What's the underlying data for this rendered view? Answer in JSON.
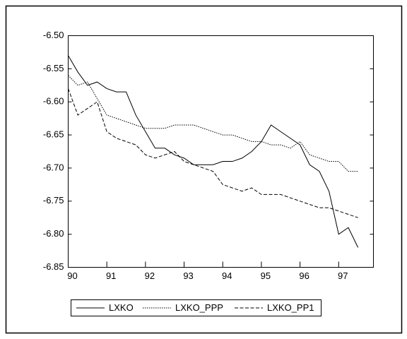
{
  "chart_data": {
    "type": "line",
    "x": [
      90,
      90.25,
      90.5,
      90.75,
      91,
      91.25,
      91.5,
      91.75,
      92,
      92.25,
      92.5,
      92.75,
      93,
      93.25,
      93.5,
      93.75,
      94,
      94.25,
      94.5,
      94.75,
      95,
      95.25,
      95.5,
      95.75,
      96,
      96.25,
      96.5,
      96.75,
      97,
      97.25,
      97.5
    ],
    "series": [
      {
        "name": "LXKO",
        "color": "#000000",
        "style": "solid",
        "values": [
          -6.53,
          -6.555,
          -6.575,
          -6.57,
          -6.58,
          -6.585,
          -6.585,
          -6.62,
          -6.645,
          -6.67,
          -6.67,
          -6.68,
          -6.685,
          -6.695,
          -6.695,
          -6.695,
          -6.69,
          -6.69,
          -6.685,
          -6.675,
          -6.66,
          -6.635,
          -6.645,
          -6.655,
          -6.665,
          -6.695,
          -6.705,
          -6.735,
          -6.8,
          -6.79,
          -6.82
        ]
      },
      {
        "name": "LXKO_PPP",
        "color": "#000000",
        "style": "dotted",
        "values": [
          -6.56,
          -6.575,
          -6.57,
          -6.595,
          -6.62,
          -6.625,
          -6.63,
          -6.635,
          -6.64,
          -6.64,
          -6.64,
          -6.635,
          -6.635,
          -6.635,
          -6.64,
          -6.645,
          -6.65,
          -6.65,
          -6.655,
          -6.66,
          -6.66,
          -6.665,
          -6.665,
          -6.67,
          -6.66,
          -6.68,
          -6.685,
          -6.69,
          -6.69,
          -6.705,
          -6.705
        ]
      },
      {
        "name": "LXKO_PP1",
        "color": "#000000",
        "style": "dashed",
        "values": [
          -6.58,
          -6.62,
          -6.61,
          -6.6,
          -6.645,
          -6.655,
          -6.66,
          -6.665,
          -6.68,
          -6.685,
          -6.68,
          -6.675,
          -6.69,
          -6.695,
          -6.7,
          -6.705,
          -6.725,
          -6.73,
          -6.735,
          -6.73,
          -6.74,
          -6.74,
          -6.74,
          -6.745,
          -6.75,
          -6.755,
          -6.76,
          -6.76,
          -6.765,
          -6.77,
          -6.775
        ]
      }
    ],
    "xlim": [
      90,
      97.9
    ],
    "xticks": [
      90,
      91,
      92,
      93,
      94,
      95,
      96,
      97
    ],
    "ylim": [
      -6.85,
      -6.5
    ],
    "yticks": [
      {
        "value": -6.85,
        "label": "-6.85"
      },
      {
        "value": -6.8,
        "label": "-6.80"
      },
      {
        "value": -6.75,
        "label": "-6.75"
      },
      {
        "value": -6.7,
        "label": "-6.70"
      },
      {
        "value": -6.65,
        "label": "-6.65"
      },
      {
        "value": -6.6,
        "label": "-6.60"
      },
      {
        "value": -6.55,
        "label": "-6.55"
      },
      {
        "value": -6.5,
        "label": "-6.50"
      }
    ],
    "legend": "bottom"
  }
}
